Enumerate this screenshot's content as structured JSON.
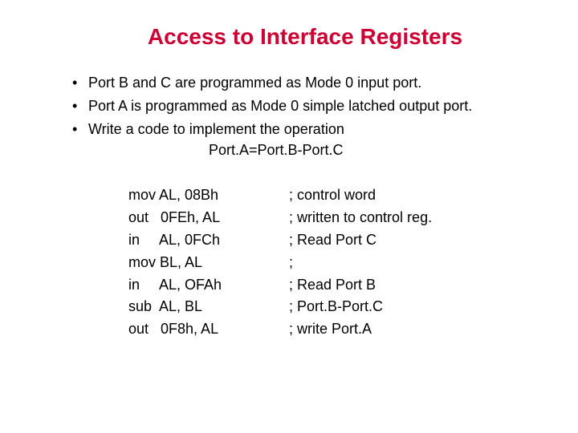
{
  "title": "Access to Interface Registers",
  "title_color": "#cc0033",
  "text_color": "#000000",
  "background_color": "#ffffff",
  "title_fontsize": 28,
  "body_fontsize": 18,
  "bullets": [
    "Port B and C are programmed as Mode 0 input port.",
    "Port A is programmed as Mode 0 simple latched output port.",
    "Write a code to implement the operation"
  ],
  "equation": "Port.A=Port.B-Port.C",
  "code": [
    {
      "instr": "mov AL, 08Bh",
      "comment": "; control word"
    },
    {
      "instr": "out   0FEh, AL",
      "comment": "; written to control reg."
    },
    {
      "instr": "in     AL, 0FCh",
      "comment": "; Read Port C"
    },
    {
      "instr": "mov BL, AL",
      "comment": ";"
    },
    {
      "instr": "in     AL, OFAh",
      "comment": "; Read Port B"
    },
    {
      "instr": "sub  AL, BL",
      "comment": "; Port.B-Port.C"
    },
    {
      "instr": "out   0F8h, AL",
      "comment": "; write Port.A"
    }
  ]
}
